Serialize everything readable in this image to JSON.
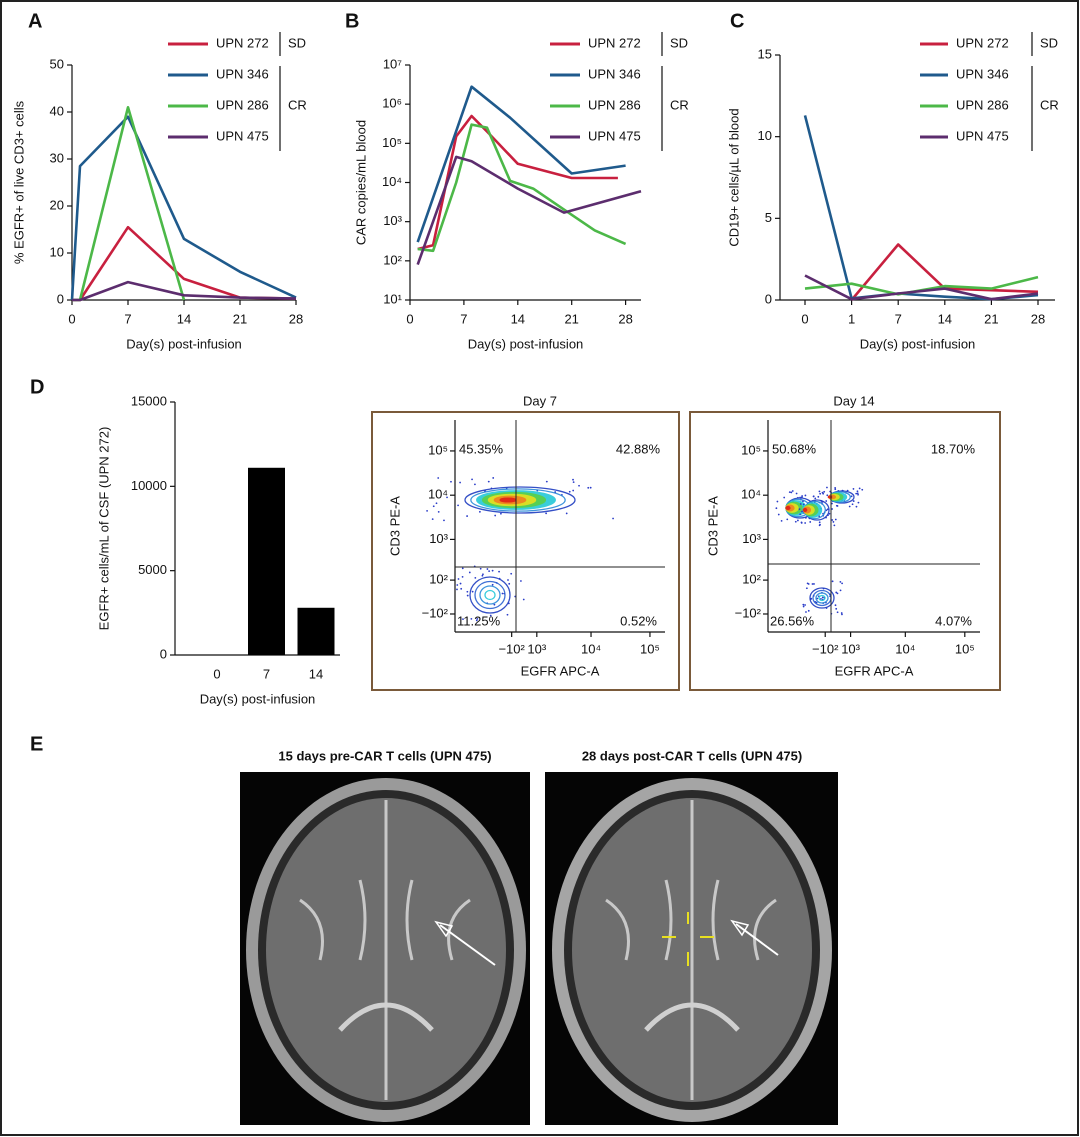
{
  "chart_data": [
    {
      "panel": "A",
      "type": "line",
      "ylabel": "% EGFR+ of live CD3+ cells",
      "xlabel": "Day(s) post-infusion",
      "xlim": [
        0,
        28
      ],
      "xticks": [
        0,
        7,
        14,
        21,
        28
      ],
      "ylim": [
        0,
        50
      ],
      "yticks": [
        0,
        10,
        20,
        30,
        40,
        50
      ],
      "group_labels": [
        "SD",
        "CR"
      ],
      "series": [
        {
          "name": "UPN 272",
          "color": "#c8203f",
          "x": [
            0,
            1,
            7,
            14,
            21,
            28
          ],
          "values": [
            0,
            0,
            15.5,
            4.5,
            0.5,
            0.3
          ]
        },
        {
          "name": "UPN 346",
          "color": "#1f5a8c",
          "x": [
            0,
            1,
            7,
            14,
            21,
            28
          ],
          "values": [
            0,
            28.5,
            39,
            13,
            6,
            0.5
          ]
        },
        {
          "name": "UPN 286",
          "color": "#4cb848",
          "x": [
            0,
            1,
            7,
            14
          ],
          "values": [
            0,
            0,
            41,
            0
          ]
        },
        {
          "name": "UPN 475",
          "color": "#5c2d6e",
          "x": [
            0,
            1,
            7,
            14,
            21,
            28
          ],
          "values": [
            0,
            0,
            3.8,
            1,
            0.5,
            0.3
          ]
        }
      ]
    },
    {
      "panel": "B",
      "type": "line",
      "log_y": true,
      "ylabel": "CAR copies/mL blood",
      "xlabel": "Day(s) post-infusion",
      "xlim": [
        0,
        30
      ],
      "xticks": [
        0,
        7,
        14,
        21,
        28
      ],
      "ylim": [
        10,
        10000000
      ],
      "yticks": [
        {
          "value": 10,
          "label": "10¹"
        },
        {
          "value": 100,
          "label": "10²"
        },
        {
          "value": 1000,
          "label": "10³"
        },
        {
          "value": 10000,
          "label": "10⁴"
        },
        {
          "value": 100000,
          "label": "10⁵"
        },
        {
          "value": 1000000,
          "label": "10⁶"
        },
        {
          "value": 10000000,
          "label": "10⁷"
        }
      ],
      "group_labels": [
        "SD",
        "CR"
      ],
      "series": [
        {
          "name": "UPN 272",
          "color": "#c8203f",
          "x": [
            1,
            3,
            6,
            8,
            10,
            14,
            21,
            27
          ],
          "values": [
            200,
            250,
            150000,
            500000,
            200000,
            30000,
            13000,
            13000
          ]
        },
        {
          "name": "UPN 346",
          "color": "#1f5a8c",
          "x": [
            1,
            8,
            13,
            21,
            28
          ],
          "values": [
            300,
            2800000,
            450000,
            17000,
            27000
          ]
        },
        {
          "name": "UPN 286",
          "color": "#4cb848",
          "x": [
            1,
            3,
            6,
            8,
            10,
            13,
            16,
            21,
            24,
            28
          ],
          "values": [
            200,
            180,
            10000,
            300000,
            250000,
            11000,
            7000,
            1500,
            600,
            270
          ]
        },
        {
          "name": "UPN 475",
          "color": "#5c2d6e",
          "x": [
            1,
            6,
            8,
            14,
            20,
            30
          ],
          "values": [
            80,
            45000,
            35000,
            7000,
            1700,
            6000
          ]
        }
      ]
    },
    {
      "panel": "C",
      "type": "line",
      "ylabel": "CD19+ cells/µL of blood",
      "xlabel": "Day(s) post-infusion",
      "categories": [
        "0",
        "1",
        "7",
        "14",
        "21",
        "28"
      ],
      "ylim": [
        0,
        15
      ],
      "yticks": [
        0,
        5,
        10,
        15
      ],
      "group_labels": [
        "SD",
        "CR"
      ],
      "series": [
        {
          "name": "UPN 272",
          "color": "#c8203f",
          "values": [
            null,
            0,
            3.4,
            0.7,
            0.6,
            0.5
          ]
        },
        {
          "name": "UPN 346",
          "color": "#1f5a8c",
          "values": [
            11.3,
            0.1,
            0.4,
            0.2,
            0.05,
            0.3
          ]
        },
        {
          "name": "UPN 286",
          "color": "#4cb848",
          "values": [
            0.7,
            1.0,
            0.35,
            0.85,
            0.7,
            1.4
          ]
        },
        {
          "name": "UPN 475",
          "color": "#5c2d6e",
          "values": [
            1.5,
            0.05,
            0.4,
            0.7,
            0.05,
            0.4
          ]
        }
      ]
    },
    {
      "panel": "D",
      "type": "bar",
      "ylabel": "EGFR+ cells/mL of CSF (UPN 272)",
      "xlabel": "Day(s) post-infusion",
      "categories": [
        "0",
        "7",
        "14"
      ],
      "values": [
        0,
        11100,
        2800
      ],
      "color": "#000000",
      "ylim": [
        0,
        15000
      ],
      "yticks": [
        0,
        5000,
        10000,
        15000
      ]
    },
    {
      "type": "flow",
      "title": "Day 7",
      "xlabel": "EGFR APC-A",
      "ylabel": "CD3 PE-A",
      "xlim": [
        -5000,
        180000
      ],
      "ylim": [
        -300,
        500000
      ],
      "x_linear_width": 1000,
      "y_linear_width": 100,
      "xticks": [
        {
          "value": -100,
          "label": "−10²"
        },
        {
          "value": 1000,
          "label": "10³"
        },
        {
          "value": 10000,
          "label": "10⁴"
        },
        {
          "value": 100000,
          "label": "10⁵"
        }
      ],
      "yticks": [
        {
          "value": -100,
          "label": "−10²"
        },
        {
          "value": 100,
          "label": "10²"
        },
        {
          "value": 1000,
          "label": "10³"
        },
        {
          "value": 10000,
          "label": "10⁴"
        },
        {
          "value": 100000,
          "label": "10⁵"
        }
      ],
      "values": [
        45.35,
        42.88,
        11.25,
        0.52
      ],
      "value_labels": [
        "45.35%",
        "42.88%",
        "11.25%",
        "0.52%"
      ]
    },
    {
      "type": "flow",
      "title": "Day 14",
      "xlabel": "EGFR APC-A",
      "ylabel": "CD3 PE-A",
      "xlim": [
        -5000,
        180000
      ],
      "ylim": [
        -300,
        500000
      ],
      "x_linear_width": 1000,
      "y_linear_width": 100,
      "xticks": [
        {
          "value": -100,
          "label": "−10²"
        },
        {
          "value": 1000,
          "label": "10³"
        },
        {
          "value": 10000,
          "label": "10⁴"
        },
        {
          "value": 100000,
          "label": "10⁵"
        }
      ],
      "yticks": [
        {
          "value": -100,
          "label": "−10²"
        },
        {
          "value": 100,
          "label": "10²"
        },
        {
          "value": 1000,
          "label": "10³"
        },
        {
          "value": 10000,
          "label": "10⁴"
        },
        {
          "value": 100000,
          "label": "10⁵"
        }
      ],
      "values": [
        50.68,
        18.7,
        26.56,
        4.07
      ],
      "value_labels": [
        "50.68%",
        "18.70%",
        "26.56%",
        "4.07%"
      ]
    }
  ],
  "panel_e": {
    "panel": "E",
    "images": [
      {
        "title": "15 days pre-CAR T cells (UPN 475)"
      },
      {
        "title": "28 days post-CAR T cells (UPN 475)"
      }
    ]
  }
}
